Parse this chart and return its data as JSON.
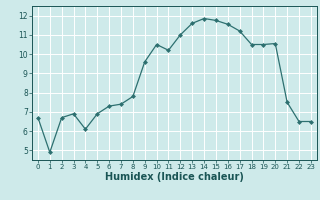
{
  "x": [
    0,
    1,
    2,
    3,
    4,
    5,
    6,
    7,
    8,
    9,
    10,
    11,
    12,
    13,
    14,
    15,
    16,
    17,
    18,
    19,
    20,
    21,
    22,
    23
  ],
  "y": [
    6.7,
    4.9,
    6.7,
    6.9,
    6.1,
    6.9,
    7.3,
    7.4,
    7.8,
    9.6,
    10.5,
    10.2,
    11.0,
    11.6,
    11.85,
    11.75,
    11.55,
    11.2,
    10.5,
    10.5,
    10.55,
    7.5,
    6.5,
    6.5
  ],
  "line_color": "#2d7070",
  "marker": "D",
  "markersize": 2.0,
  "linewidth": 0.9,
  "background_color": "#ceeaea",
  "grid_color": "#ffffff",
  "xlabel": "Humidex (Indice chaleur)",
  "xlabel_fontsize": 7,
  "xlabel_color": "#1a5555",
  "tick_color": "#1a5555",
  "ylim": [
    4.5,
    12.5
  ],
  "xlim": [
    -0.5,
    23.5
  ],
  "yticks": [
    5,
    6,
    7,
    8,
    9,
    10,
    11,
    12
  ],
  "xticks": [
    0,
    1,
    2,
    3,
    4,
    5,
    6,
    7,
    8,
    9,
    10,
    11,
    12,
    13,
    14,
    15,
    16,
    17,
    18,
    19,
    20,
    21,
    22,
    23
  ]
}
